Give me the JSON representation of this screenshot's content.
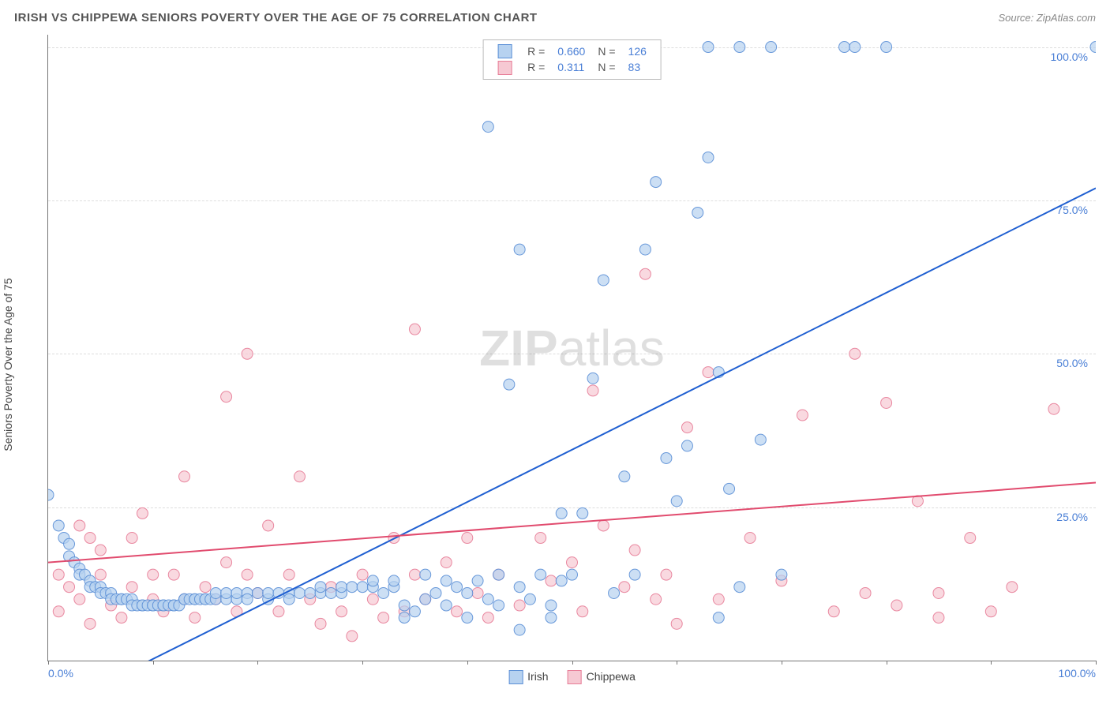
{
  "header": {
    "title": "IRISH VS CHIPPEWA SENIORS POVERTY OVER THE AGE OF 75 CORRELATION CHART",
    "source": "Source: ZipAtlas.com"
  },
  "chart": {
    "type": "scatter",
    "ylabel": "Seniors Poverty Over the Age of 75",
    "xlim": [
      0,
      100
    ],
    "ylim": [
      0,
      102
    ],
    "y_gridlines": [
      25,
      50,
      75,
      100
    ],
    "y_tick_labels": [
      "25.0%",
      "50.0%",
      "75.0%",
      "100.0%"
    ],
    "x_gridticks": [
      0,
      10,
      20,
      30,
      40,
      50,
      60,
      70,
      80,
      90,
      100
    ],
    "x_tick_labels": {
      "0": "0.0%",
      "100": "100.0%"
    },
    "background_color": "#ffffff",
    "grid_color": "#dddddd",
    "axis_color": "#777777",
    "tick_label_color": "#4a7fd6",
    "axis_label_color": "#444444",
    "marker_radius": 7,
    "series": [
      {
        "name": "Irish",
        "fill": "#b7d2f0",
        "stroke": "#5b8fd6",
        "stroke_opacity": 0.9,
        "fill_opacity": 0.7,
        "R": "0.660",
        "N": "126",
        "trend": {
          "x1": 5,
          "y1": -4,
          "x2": 100,
          "y2": 77,
          "color": "#1f5fd1",
          "width": 2
        },
        "points": [
          [
            0,
            27
          ],
          [
            1,
            22
          ],
          [
            1.5,
            20
          ],
          [
            2,
            19
          ],
          [
            2,
            17
          ],
          [
            2.5,
            16
          ],
          [
            3,
            15
          ],
          [
            3,
            14
          ],
          [
            3.5,
            14
          ],
          [
            4,
            13
          ],
          [
            4,
            12
          ],
          [
            4.5,
            12
          ],
          [
            5,
            12
          ],
          [
            5,
            11
          ],
          [
            5.5,
            11
          ],
          [
            6,
            11
          ],
          [
            6,
            10
          ],
          [
            6.5,
            10
          ],
          [
            7,
            10
          ],
          [
            7,
            10
          ],
          [
            7.5,
            10
          ],
          [
            8,
            10
          ],
          [
            8,
            9
          ],
          [
            8.5,
            9
          ],
          [
            9,
            9
          ],
          [
            9,
            9
          ],
          [
            9.5,
            9
          ],
          [
            10,
            9
          ],
          [
            10,
            9
          ],
          [
            10.5,
            9
          ],
          [
            11,
            9
          ],
          [
            11,
            9
          ],
          [
            11.5,
            9
          ],
          [
            12,
            9
          ],
          [
            12,
            9
          ],
          [
            12.5,
            9
          ],
          [
            13,
            10
          ],
          [
            13,
            10
          ],
          [
            13.5,
            10
          ],
          [
            14,
            10
          ],
          [
            14,
            10
          ],
          [
            14.5,
            10
          ],
          [
            15,
            10
          ],
          [
            15,
            10
          ],
          [
            15.5,
            10
          ],
          [
            16,
            10
          ],
          [
            16,
            11
          ],
          [
            17,
            10
          ],
          [
            17,
            11
          ],
          [
            18,
            10
          ],
          [
            18,
            11
          ],
          [
            19,
            11
          ],
          [
            19,
            10
          ],
          [
            20,
            11
          ],
          [
            21,
            10
          ],
          [
            21,
            11
          ],
          [
            22,
            11
          ],
          [
            23,
            11
          ],
          [
            23,
            10
          ],
          [
            24,
            11
          ],
          [
            25,
            11
          ],
          [
            26,
            11
          ],
          [
            26,
            12
          ],
          [
            27,
            11
          ],
          [
            28,
            11
          ],
          [
            28,
            12
          ],
          [
            29,
            12
          ],
          [
            30,
            12
          ],
          [
            31,
            12
          ],
          [
            31,
            13
          ],
          [
            32,
            11
          ],
          [
            33,
            12
          ],
          [
            33,
            13
          ],
          [
            34,
            9
          ],
          [
            34,
            7
          ],
          [
            35,
            8
          ],
          [
            36,
            10
          ],
          [
            36,
            14
          ],
          [
            37,
            11
          ],
          [
            38,
            9
          ],
          [
            38,
            13
          ],
          [
            39,
            12
          ],
          [
            40,
            11
          ],
          [
            40,
            7
          ],
          [
            41,
            13
          ],
          [
            42,
            10
          ],
          [
            43,
            9
          ],
          [
            43,
            14
          ],
          [
            44,
            45
          ],
          [
            45,
            67
          ],
          [
            45,
            12
          ],
          [
            46,
            10
          ],
          [
            47,
            14
          ],
          [
            48,
            9
          ],
          [
            49,
            13
          ],
          [
            50,
            14
          ],
          [
            51,
            24
          ],
          [
            52,
            46
          ],
          [
            53,
            62
          ],
          [
            54,
            11
          ],
          [
            55,
            30
          ],
          [
            56,
            14
          ],
          [
            57,
            67
          ],
          [
            58,
            78
          ],
          [
            59,
            33
          ],
          [
            60,
            26
          ],
          [
            61,
            35
          ],
          [
            62,
            73
          ],
          [
            63,
            82
          ],
          [
            64,
            7
          ],
          [
            64,
            47
          ],
          [
            65,
            28
          ],
          [
            66,
            12
          ],
          [
            68,
            36
          ],
          [
            70,
            14
          ],
          [
            63,
            100
          ],
          [
            66,
            100
          ],
          [
            69,
            100
          ],
          [
            76,
            100
          ],
          [
            77,
            100
          ],
          [
            80,
            100
          ],
          [
            100,
            100
          ],
          [
            42,
            87
          ],
          [
            45,
            5
          ],
          [
            49,
            24
          ],
          [
            48,
            7
          ]
        ]
      },
      {
        "name": "Chippewa",
        "fill": "#f6c9d3",
        "stroke": "#e77c97",
        "stroke_opacity": 0.9,
        "fill_opacity": 0.7,
        "R": "0.311",
        "N": "83",
        "trend": {
          "x1": 0,
          "y1": 16,
          "x2": 100,
          "y2": 29,
          "color": "#e14b6e",
          "width": 2
        },
        "points": [
          [
            1,
            14
          ],
          [
            1,
            8
          ],
          [
            2,
            12
          ],
          [
            3,
            22
          ],
          [
            3,
            10
          ],
          [
            4,
            20
          ],
          [
            4,
            6
          ],
          [
            5,
            14
          ],
          [
            5,
            18
          ],
          [
            6,
            9
          ],
          [
            7,
            7
          ],
          [
            8,
            20
          ],
          [
            8,
            12
          ],
          [
            9,
            24
          ],
          [
            10,
            10
          ],
          [
            10,
            14
          ],
          [
            11,
            8
          ],
          [
            12,
            14
          ],
          [
            13,
            10
          ],
          [
            13,
            30
          ],
          [
            14,
            7
          ],
          [
            15,
            12
          ],
          [
            16,
            10
          ],
          [
            17,
            16
          ],
          [
            17,
            43
          ],
          [
            18,
            8
          ],
          [
            19,
            14
          ],
          [
            19,
            50
          ],
          [
            20,
            11
          ],
          [
            21,
            22
          ],
          [
            22,
            8
          ],
          [
            23,
            14
          ],
          [
            24,
            30
          ],
          [
            25,
            10
          ],
          [
            26,
            6
          ],
          [
            27,
            12
          ],
          [
            28,
            8
          ],
          [
            29,
            4
          ],
          [
            30,
            14
          ],
          [
            31,
            10
          ],
          [
            32,
            7
          ],
          [
            33,
            20
          ],
          [
            34,
            8
          ],
          [
            35,
            54
          ],
          [
            35,
            14
          ],
          [
            36,
            10
          ],
          [
            38,
            16
          ],
          [
            39,
            8
          ],
          [
            40,
            20
          ],
          [
            41,
            11
          ],
          [
            42,
            7
          ],
          [
            43,
            14
          ],
          [
            45,
            9
          ],
          [
            47,
            20
          ],
          [
            48,
            13
          ],
          [
            50,
            16
          ],
          [
            51,
            8
          ],
          [
            52,
            44
          ],
          [
            53,
            22
          ],
          [
            55,
            12
          ],
          [
            56,
            18
          ],
          [
            57,
            63
          ],
          [
            58,
            10
          ],
          [
            59,
            14
          ],
          [
            61,
            38
          ],
          [
            63,
            47
          ],
          [
            64,
            10
          ],
          [
            67,
            20
          ],
          [
            70,
            13
          ],
          [
            72,
            40
          ],
          [
            75,
            8
          ],
          [
            77,
            50
          ],
          [
            78,
            11
          ],
          [
            80,
            42
          ],
          [
            81,
            9
          ],
          [
            83,
            26
          ],
          [
            85,
            11
          ],
          [
            88,
            20
          ],
          [
            90,
            8
          ],
          [
            92,
            12
          ],
          [
            96,
            41
          ],
          [
            85,
            7
          ],
          [
            60,
            6
          ]
        ]
      }
    ],
    "legend_top": {
      "R_label": "R =",
      "N_label": "N ="
    },
    "legend_bottom": [
      {
        "label": "Irish",
        "fill": "#b7d2f0",
        "stroke": "#5b8fd6"
      },
      {
        "label": "Chippewa",
        "fill": "#f6c9d3",
        "stroke": "#e77c97"
      }
    ],
    "watermark": "ZIPatlas"
  }
}
